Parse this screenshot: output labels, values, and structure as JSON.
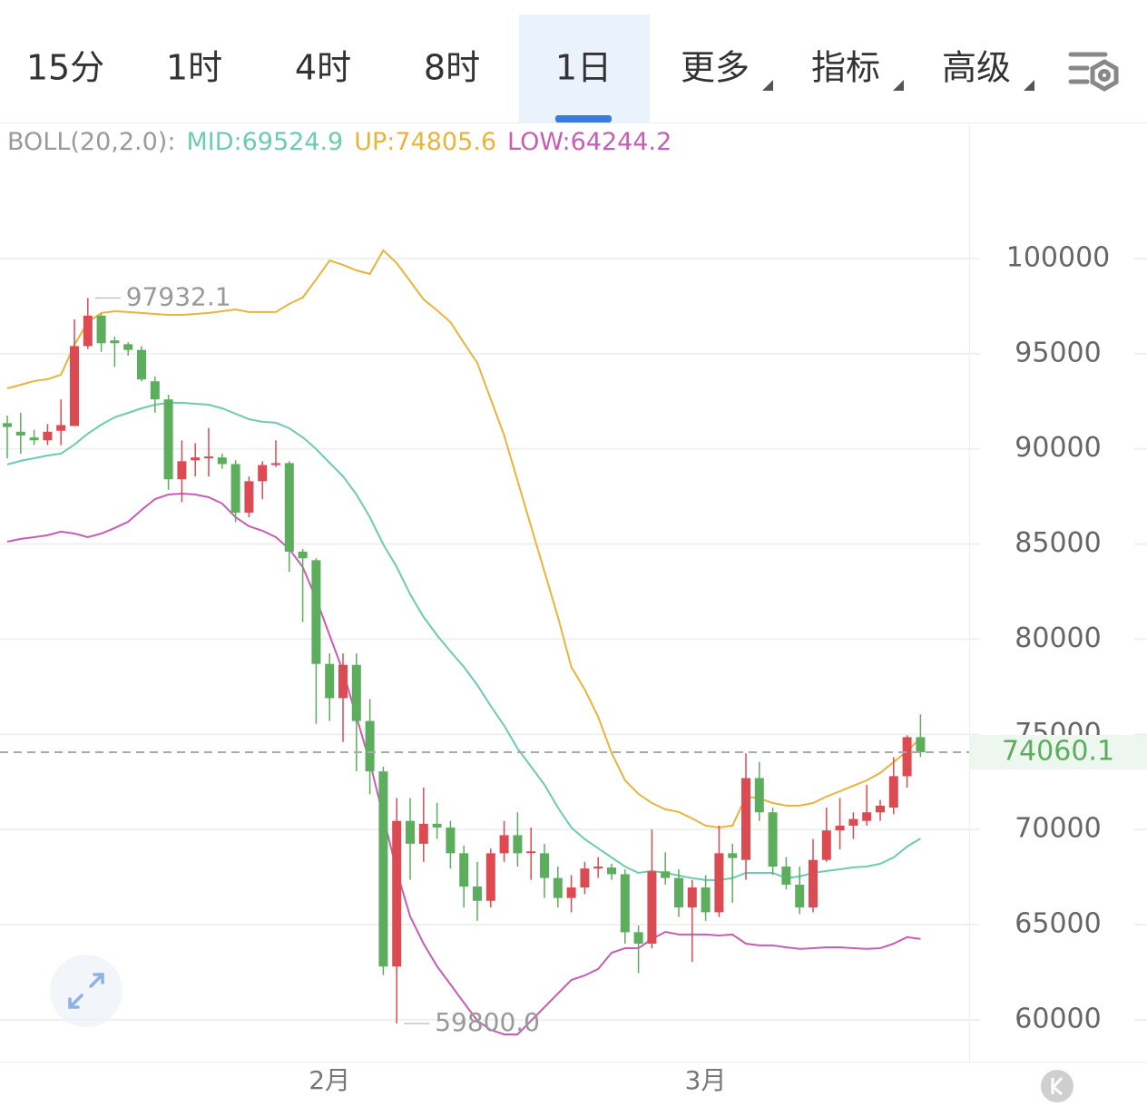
{
  "tabs": [
    "15分",
    "1时",
    "4时",
    "8时",
    "1日",
    "更多",
    "指标",
    "高级"
  ],
  "chart_data": {
    "type": "candlestick",
    "indicator": "BOLL(20,2.0):",
    "categories": [
      null,
      null,
      null,
      null,
      null,
      null,
      null,
      null,
      null,
      null,
      null,
      null,
      null,
      null,
      null,
      null,
      null,
      null,
      null,
      null,
      null,
      null,
      null,
      null,
      "2月",
      null,
      null,
      null,
      null,
      null,
      null,
      null,
      null,
      null,
      null,
      null,
      null,
      null,
      null,
      null,
      null,
      null,
      null,
      null,
      null,
      null,
      null,
      null,
      null,
      null,
      null,
      null,
      "3月",
      null,
      null,
      null,
      null,
      null,
      null,
      null,
      null,
      null,
      null,
      null,
      null,
      null,
      null,
      null,
      null
    ],
    "open": [
      91350,
      90900,
      90600,
      90450,
      90950,
      91200,
      95400,
      97000,
      95700,
      95500,
      95200,
      93550,
      92600,
      88400,
      89400,
      89550,
      89550,
      89200,
      86650,
      88300,
      89150,
      89250,
      84600,
      84150,
      78700,
      76900,
      78650,
      75700,
      73050,
      62800,
      70450,
      69250,
      70300,
      70100,
      68750,
      67000,
      66250,
      68750,
      69700,
      68800,
      68750,
      67450,
      66400,
      66950,
      67950,
      68000,
      67650,
      64600,
      64000,
      67800,
      67450,
      65900,
      66950,
      65650,
      68750,
      68400,
      72700,
      70900,
      68050,
      67100,
      65900,
      68400,
      69950,
      70200,
      70450,
      70900,
      71150,
      72800,
      74850
    ],
    "high": [
      91750,
      91900,
      91000,
      91300,
      92600,
      96800,
      97932.1,
      97100,
      95900,
      95600,
      95400,
      93800,
      92850,
      90450,
      90300,
      91100,
      89750,
      89400,
      88550,
      89350,
      90450,
      89350,
      84750,
      84250,
      79250,
      79250,
      79250,
      76850,
      73300,
      71650,
      71650,
      72200,
      71400,
      70450,
      69150,
      68300,
      69000,
      70450,
      70900,
      70100,
      69250,
      68050,
      67600,
      68300,
      68550,
      68200,
      67900,
      64950,
      70000,
      68800,
      67900,
      67350,
      67600,
      70200,
      69250,
      74000,
      73550,
      71150,
      68550,
      68050,
      69500,
      71150,
      71650,
      70900,
      72350,
      71550,
      73800,
      74950,
      76050
    ],
    "low": [
      89500,
      89750,
      90200,
      90200,
      90200,
      91200,
      95250,
      95100,
      94300,
      94900,
      93550,
      91900,
      87850,
      87200,
      88550,
      88550,
      88950,
      86150,
      86400,
      87350,
      89050,
      83550,
      80900,
      75550,
      75700,
      74600,
      73050,
      71850,
      62350,
      59800,
      67350,
      68300,
      69500,
      67950,
      65900,
      65200,
      65900,
      68300,
      68050,
      67350,
      66400,
      65900,
      65650,
      66600,
      67450,
      67350,
      64000,
      62450,
      63750,
      67100,
      65400,
      63050,
      65200,
      65400,
      66150,
      67350,
      70450,
      67600,
      66850,
      65550,
      65650,
      68300,
      68950,
      69500,
      70200,
      70450,
      70800,
      72200,
      73800
    ],
    "close": [
      91150,
      90700,
      90450,
      90900,
      91250,
      95400,
      97000,
      95550,
      95550,
      95200,
      93650,
      92600,
      88400,
      89350,
      89550,
      89600,
      89200,
      86650,
      88300,
      89150,
      89250,
      84600,
      84250,
      78700,
      76900,
      78650,
      75700,
      73050,
      62800,
      70450,
      69250,
      70300,
      70100,
      68750,
      67000,
      66250,
      68750,
      69700,
      68750,
      68850,
      67450,
      66400,
      66950,
      67950,
      68050,
      67650,
      64600,
      64000,
      67800,
      67450,
      65900,
      66950,
      65650,
      68750,
      68500,
      72700,
      70900,
      68050,
      67100,
      65900,
      68400,
      69950,
      70200,
      70550,
      70900,
      71250,
      72800,
      74850,
      74060.1
    ],
    "up_color": "#dc4a52",
    "down_color": "#5cad5e",
    "series": [
      {
        "name": "MID:69524.9",
        "color": "#6cccae",
        "values": [
          89180,
          89370,
          89510,
          89650,
          89750,
          90230,
          90800,
          91270,
          91660,
          91890,
          92130,
          92320,
          92420,
          92420,
          92370,
          92320,
          92130,
          91850,
          91560,
          91420,
          91370,
          91080,
          90610,
          89990,
          89270,
          88560,
          87600,
          86410,
          84980,
          83790,
          82360,
          81170,
          80210,
          79350,
          78540,
          77590,
          76490,
          75450,
          74250,
          73300,
          72350,
          71150,
          70100,
          69490,
          69010,
          68530,
          68050,
          67720,
          67820,
          67720,
          67580,
          67440,
          67340,
          67340,
          67440,
          67720,
          67720,
          67720,
          67440,
          67530,
          67720,
          67820,
          67910,
          68010,
          68050,
          68200,
          68530,
          69100,
          69524.9
        ]
      },
      {
        "name": "UP:74805.6",
        "color": "#eab43c",
        "values": [
          93180,
          93370,
          93560,
          93660,
          93900,
          95470,
          96660,
          97140,
          97230,
          97190,
          97140,
          97090,
          97040,
          97040,
          97090,
          97140,
          97230,
          97330,
          97190,
          97190,
          97190,
          97620,
          97950,
          98900,
          99900,
          99670,
          99380,
          99190,
          100430,
          99760,
          98810,
          97850,
          97280,
          96660,
          95570,
          94520,
          92610,
          90700,
          88320,
          85930,
          83550,
          81170,
          78540,
          77350,
          75920,
          74010,
          72580,
          71870,
          71390,
          71060,
          70920,
          70580,
          70200,
          70100,
          70200,
          71730,
          71630,
          71390,
          71250,
          71250,
          71390,
          71730,
          72010,
          72300,
          72580,
          72970,
          73540,
          74110,
          74805.6
        ]
      },
      {
        "name": "LOW:64244.2",
        "color": "#c95db3",
        "values": [
          85120,
          85270,
          85360,
          85460,
          85650,
          85550,
          85360,
          85550,
          85840,
          86170,
          86790,
          87360,
          87600,
          87650,
          87600,
          87460,
          87130,
          86410,
          85930,
          85700,
          85360,
          84740,
          83790,
          82120,
          80210,
          78310,
          75920,
          73540,
          70680,
          67820,
          65430,
          64000,
          62810,
          61860,
          60900,
          59950,
          59470,
          59230,
          59230,
          59950,
          60660,
          61380,
          62090,
          62330,
          62670,
          63520,
          63760,
          63760,
          64240,
          64620,
          64480,
          64480,
          64480,
          64430,
          64480,
          64000,
          63910,
          63910,
          63810,
          63720,
          63760,
          63810,
          63810,
          63760,
          63720,
          63760,
          64000,
          64340,
          64244.2
        ]
      }
    ],
    "ylim": [
      57800,
      107150
    ],
    "yticks": [
      60000,
      65000,
      70000,
      75000,
      80000,
      85000,
      90000,
      95000,
      100000
    ],
    "grid": true,
    "high_label": 97932.1,
    "low_label": {
      "value": 59800,
      "label": "59800.0"
    },
    "last_price": 74060.1
  }
}
